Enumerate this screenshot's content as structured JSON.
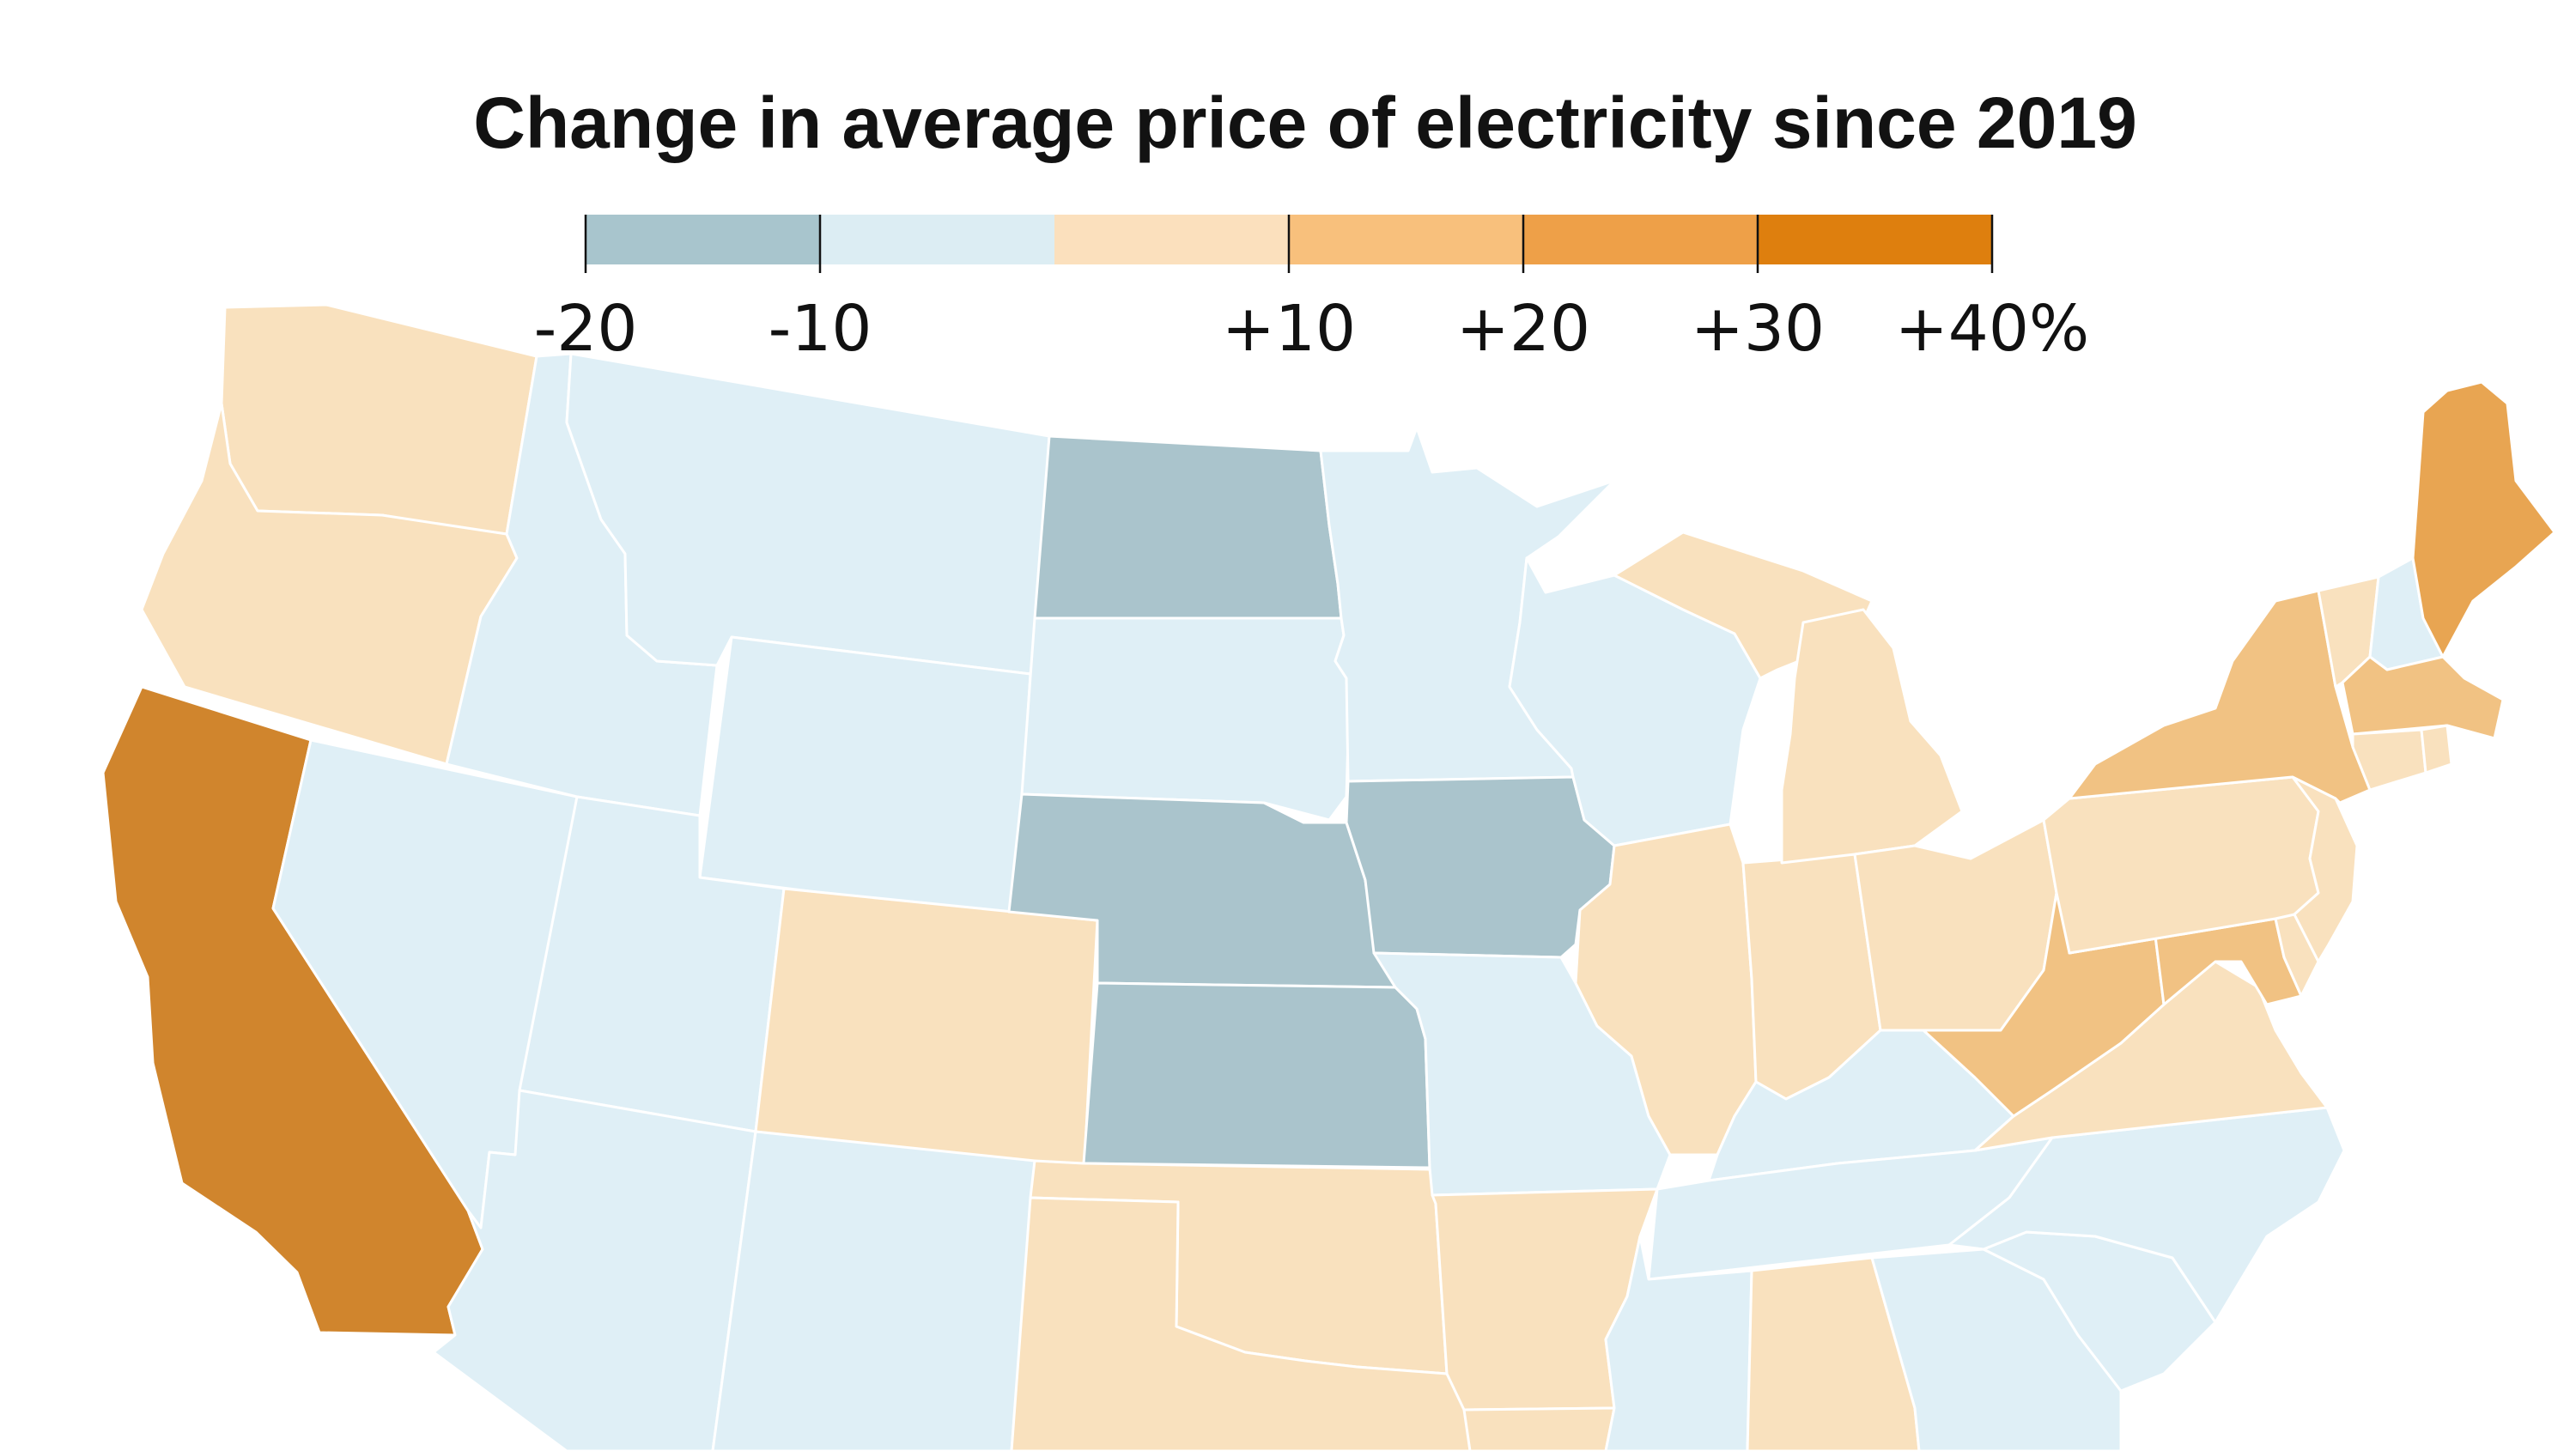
{
  "title": "Change in average price of electricity since 2019",
  "legend": {
    "bins": [
      {
        "from": -20,
        "to": -10,
        "color": "#a8c5cd"
      },
      {
        "from": -10,
        "to": 0,
        "color": "#dcedf3"
      },
      {
        "from": 0,
        "to": 10,
        "color": "#fbe0bd"
      },
      {
        "from": 10,
        "to": 20,
        "color": "#f8c07c"
      },
      {
        "from": 20,
        "to": 30,
        "color": "#eea048"
      },
      {
        "from": 30,
        "to": 40,
        "color": "#de7f0e"
      }
    ],
    "tick_labels": [
      "-20",
      "-10",
      "+10",
      "+20",
      "+30",
      "+40%"
    ]
  },
  "colors": {
    "dec_big": "#aac4cc",
    "dec": "#dfeff6",
    "inc_small": "#f9e1be",
    "inc_mid": "#f1c283",
    "inc_high": "#e8a552",
    "inc_top": "#d0852d",
    "border": "#ffffff"
  },
  "states": [
    {
      "id": "WA",
      "bin": "inc_small"
    },
    {
      "id": "OR",
      "bin": "inc_small"
    },
    {
      "id": "CA",
      "bin": "inc_top"
    },
    {
      "id": "NV",
      "bin": "dec"
    },
    {
      "id": "ID",
      "bin": "dec"
    },
    {
      "id": "MT",
      "bin": "dec"
    },
    {
      "id": "WY",
      "bin": "dec"
    },
    {
      "id": "UT",
      "bin": "dec"
    },
    {
      "id": "AZ",
      "bin": "dec"
    },
    {
      "id": "CO",
      "bin": "inc_small"
    },
    {
      "id": "NM",
      "bin": "dec"
    },
    {
      "id": "ND",
      "bin": "dec_big"
    },
    {
      "id": "SD",
      "bin": "dec"
    },
    {
      "id": "NE",
      "bin": "dec_big"
    },
    {
      "id": "KS",
      "bin": "dec_big"
    },
    {
      "id": "OK",
      "bin": "inc_small"
    },
    {
      "id": "TX",
      "bin": "inc_small"
    },
    {
      "id": "MN",
      "bin": "dec"
    },
    {
      "id": "IA",
      "bin": "dec_big"
    },
    {
      "id": "MO",
      "bin": "dec"
    },
    {
      "id": "AR",
      "bin": "inc_small"
    },
    {
      "id": "LA",
      "bin": "inc_small"
    },
    {
      "id": "WI",
      "bin": "dec"
    },
    {
      "id": "IL",
      "bin": "inc_small"
    },
    {
      "id": "MI",
      "bin": "inc_small"
    },
    {
      "id": "IN",
      "bin": "inc_small"
    },
    {
      "id": "OH",
      "bin": "inc_small"
    },
    {
      "id": "KY",
      "bin": "dec"
    },
    {
      "id": "TN",
      "bin": "dec"
    },
    {
      "id": "MS",
      "bin": "dec"
    },
    {
      "id": "AL",
      "bin": "inc_small"
    },
    {
      "id": "GA",
      "bin": "dec"
    },
    {
      "id": "SC",
      "bin": "dec"
    },
    {
      "id": "NC",
      "bin": "dec"
    },
    {
      "id": "VA",
      "bin": "inc_small"
    },
    {
      "id": "WV",
      "bin": "inc_mid"
    },
    {
      "id": "MD",
      "bin": "inc_mid"
    },
    {
      "id": "DE",
      "bin": "inc_small"
    },
    {
      "id": "PA",
      "bin": "inc_small"
    },
    {
      "id": "NJ",
      "bin": "inc_small"
    },
    {
      "id": "NY",
      "bin": "inc_mid"
    },
    {
      "id": "CT",
      "bin": "inc_small"
    },
    {
      "id": "RI",
      "bin": "inc_small"
    },
    {
      "id": "MA",
      "bin": "inc_mid"
    },
    {
      "id": "VT",
      "bin": "inc_small"
    },
    {
      "id": "NH",
      "bin": "dec"
    },
    {
      "id": "ME",
      "bin": "inc_high"
    }
  ]
}
